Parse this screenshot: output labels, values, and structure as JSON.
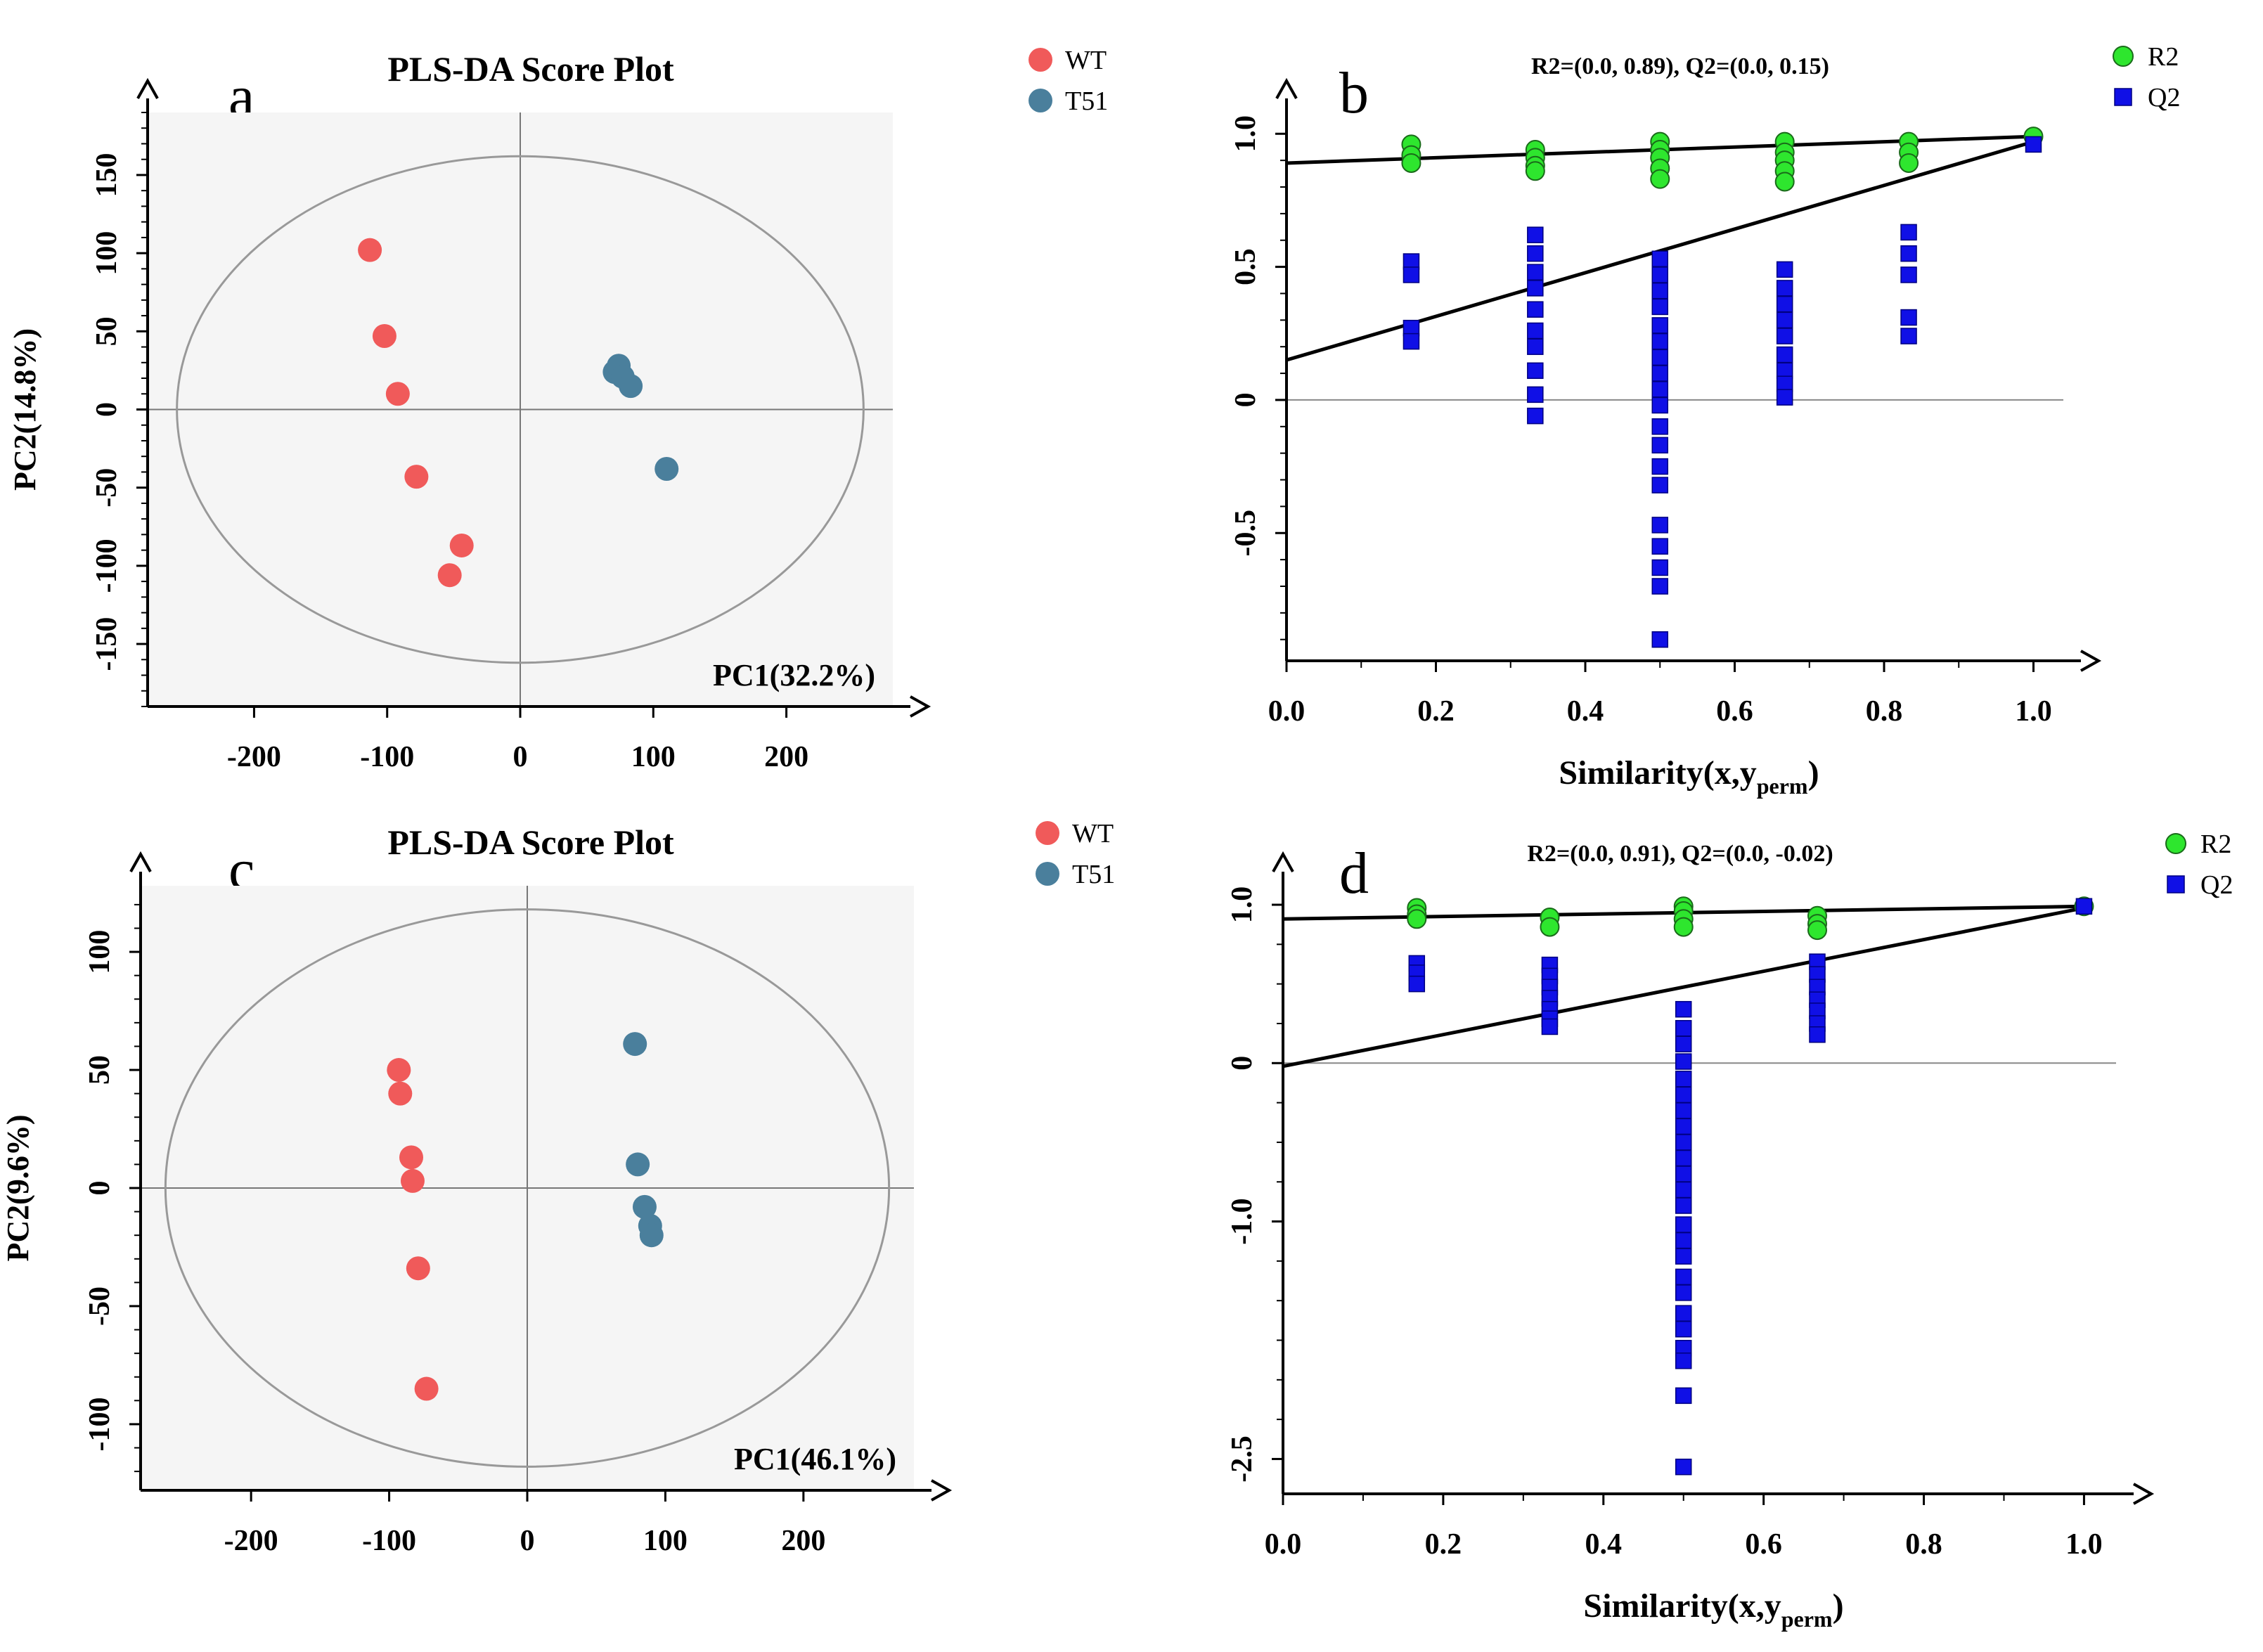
{
  "chart_data": [
    {
      "panel": "a",
      "type": "scatter",
      "title": "PLS-DA Score Plot",
      "xlabel": "PC1(32.2%)",
      "ylabel": "PC2(14.8%)",
      "xlim": [
        -280,
        280
      ],
      "ylim": [
        -190,
        190
      ],
      "xticks": [
        -200,
        -100,
        0,
        100,
        200
      ],
      "yticks": [
        150,
        100,
        50,
        0,
        -50,
        -100,
        -150
      ],
      "grid": false,
      "legend": "top-right",
      "ellipse": {
        "rx": 258,
        "ry": 162
      },
      "series": [
        {
          "name": "WT",
          "color": "#f05a5a",
          "x": [
            -113,
            -102,
            -92,
            -78,
            -44,
            -53
          ],
          "y": [
            102,
            47,
            10,
            -43,
            -87,
            -106
          ]
        },
        {
          "name": "T51",
          "color": "#4a7f9c",
          "x": [
            71,
            74,
            77,
            83,
            110
          ],
          "y": [
            24,
            28,
            21,
            15,
            -38
          ]
        }
      ]
    },
    {
      "panel": "b",
      "type": "scatter",
      "title": "R2=(0.0, 0.89), Q2=(0.0, 0.15)",
      "xlabel": "Similarity(x,y",
      "xlabel_sub": "perm",
      "xlabel_end": ")",
      "ylabel": "",
      "xlim": [
        0,
        1.04
      ],
      "ylim": [
        -0.98,
        1.08
      ],
      "xticks": [
        0.0,
        0.2,
        0.4,
        0.6,
        0.8,
        1.0
      ],
      "xtick_labels": [
        "0.0",
        "0.2",
        "0.4",
        "0.6",
        "0.8",
        "1.0"
      ],
      "yticks": [
        1.0,
        0.5,
        0,
        -0.5
      ],
      "ytick_labels": [
        "1.0",
        "0.5",
        "0",
        "-0.5"
      ],
      "grid": false,
      "legend": "top-right",
      "r2_line": {
        "intercept": 0.89,
        "end": 0.99
      },
      "q2_line": {
        "intercept": 0.15,
        "end": 0.97
      },
      "series": [
        {
          "name": "R2",
          "color": "#2ee62e",
          "marker": "circle",
          "x": [
            0.167,
            0.167,
            0.167,
            0.333,
            0.333,
            0.333,
            0.333,
            0.5,
            0.5,
            0.5,
            0.5,
            0.5,
            0.667,
            0.667,
            0.667,
            0.667,
            0.667,
            0.833,
            0.833,
            0.833,
            1.0
          ],
          "y": [
            0.96,
            0.92,
            0.89,
            0.94,
            0.91,
            0.88,
            0.86,
            0.97,
            0.94,
            0.91,
            0.87,
            0.83,
            0.97,
            0.93,
            0.9,
            0.86,
            0.82,
            0.97,
            0.93,
            0.89,
            0.99
          ]
        },
        {
          "name": "Q2",
          "color": "#1010e6",
          "marker": "square",
          "x": [
            0.167,
            0.167,
            0.167,
            0.167,
            0.333,
            0.333,
            0.333,
            0.333,
            0.333,
            0.333,
            0.333,
            0.333,
            0.333,
            0.333,
            0.5,
            0.5,
            0.5,
            0.5,
            0.5,
            0.5,
            0.5,
            0.5,
            0.5,
            0.5,
            0.5,
            0.5,
            0.5,
            0.5,
            0.5,
            0.5,
            0.5,
            0.5,
            0.5,
            0.667,
            0.667,
            0.667,
            0.667,
            0.667,
            0.667,
            0.667,
            0.667,
            0.667,
            0.833,
            0.833,
            0.833,
            0.833,
            0.833,
            1.0
          ],
          "y": [
            0.52,
            0.47,
            0.27,
            0.22,
            0.62,
            0.55,
            0.48,
            0.42,
            0.34,
            0.26,
            0.2,
            0.11,
            0.02,
            -0.06,
            0.53,
            0.47,
            0.41,
            0.35,
            0.28,
            0.22,
            0.16,
            0.1,
            0.04,
            -0.02,
            -0.1,
            -0.17,
            -0.25,
            -0.32,
            -0.47,
            -0.55,
            -0.63,
            -0.7,
            -0.9,
            0.49,
            0.42,
            0.36,
            0.3,
            0.24,
            0.17,
            0.11,
            0.06,
            0.01,
            0.63,
            0.55,
            0.47,
            0.31,
            0.24,
            0.96
          ]
        }
      ]
    },
    {
      "panel": "c",
      "type": "scatter",
      "title": "PLS-DA Score Plot",
      "xlabel": "PC1(46.1%)",
      "ylabel": "PC2(9.6%)",
      "xlim": [
        -280,
        280
      ],
      "ylim": [
        -128,
        128
      ],
      "xticks": [
        -200,
        -100,
        0,
        100,
        200
      ],
      "yticks": [
        100,
        50,
        0,
        -50,
        -100
      ],
      "grid": false,
      "legend": "top-right",
      "ellipse": {
        "rx": 262,
        "ry": 118
      },
      "series": [
        {
          "name": "WT",
          "color": "#f05a5a",
          "x": [
            -93,
            -92,
            -84,
            -83,
            -79,
            -73
          ],
          "y": [
            50,
            40,
            13,
            3,
            -34,
            -85
          ]
        },
        {
          "name": "T51",
          "color": "#4a7f9c",
          "x": [
            78,
            80,
            85,
            89,
            90
          ],
          "y": [
            61,
            10,
            -8,
            -16,
            -20
          ]
        }
      ]
    },
    {
      "panel": "d",
      "type": "scatter",
      "title": "R2=(0.0, 0.91), Q2=(0.0, -0.02)",
      "xlabel": "Similarity(x,y",
      "xlabel_sub": "perm",
      "xlabel_end": ")",
      "ylabel": "",
      "xlim": [
        0,
        1.04
      ],
      "ylim": [
        -2.72,
        1.12
      ],
      "xticks": [
        0.0,
        0.2,
        0.4,
        0.6,
        0.8,
        1.0
      ],
      "xtick_labels": [
        "0.0",
        "0.2",
        "0.4",
        "0.6",
        "0.8",
        "1.0"
      ],
      "yticks": [
        1.0,
        0,
        -1.0,
        -2.5
      ],
      "ytick_labels": [
        "1.0",
        "0",
        "-1.0",
        "-2.5"
      ],
      "grid": false,
      "legend": "top-right",
      "r2_line": {
        "intercept": 0.91,
        "end": 0.99
      },
      "q2_line": {
        "intercept": -0.02,
        "end": 0.98
      },
      "series": [
        {
          "name": "R2",
          "color": "#2ee62e",
          "marker": "circle",
          "x": [
            0.167,
            0.167,
            0.167,
            0.333,
            0.333,
            0.5,
            0.5,
            0.5,
            0.5,
            0.667,
            0.667,
            0.667,
            1.0
          ],
          "y": [
            0.98,
            0.94,
            0.91,
            0.92,
            0.86,
            0.99,
            0.96,
            0.91,
            0.86,
            0.93,
            0.88,
            0.84,
            0.99
          ]
        },
        {
          "name": "Q2",
          "color": "#1010e6",
          "marker": "square",
          "x": [
            0.167,
            0.167,
            0.167,
            0.333,
            0.333,
            0.333,
            0.333,
            0.333,
            0.333,
            0.333,
            0.5,
            0.5,
            0.5,
            0.5,
            0.5,
            0.5,
            0.5,
            0.5,
            0.5,
            0.5,
            0.5,
            0.5,
            0.5,
            0.5,
            0.5,
            0.5,
            0.5,
            0.5,
            0.5,
            0.5,
            0.5,
            0.5,
            0.5,
            0.5,
            0.667,
            0.667,
            0.667,
            0.667,
            0.667,
            0.667,
            0.667,
            1.0
          ],
          "y": [
            0.63,
            0.57,
            0.5,
            0.62,
            0.55,
            0.48,
            0.41,
            0.34,
            0.28,
            0.23,
            0.34,
            0.22,
            0.12,
            0.01,
            -0.1,
            -0.2,
            -0.3,
            -0.4,
            -0.5,
            -0.6,
            -0.7,
            -0.8,
            -0.9,
            -1.02,
            -1.12,
            -1.22,
            -1.35,
            -1.45,
            -1.58,
            -1.68,
            -1.8,
            -1.88,
            -2.1,
            -2.55,
            0.64,
            0.56,
            0.48,
            0.4,
            0.33,
            0.25,
            0.18,
            0.99
          ]
        }
      ]
    }
  ],
  "panel_tags": [
    "a",
    "b",
    "c",
    "d"
  ]
}
